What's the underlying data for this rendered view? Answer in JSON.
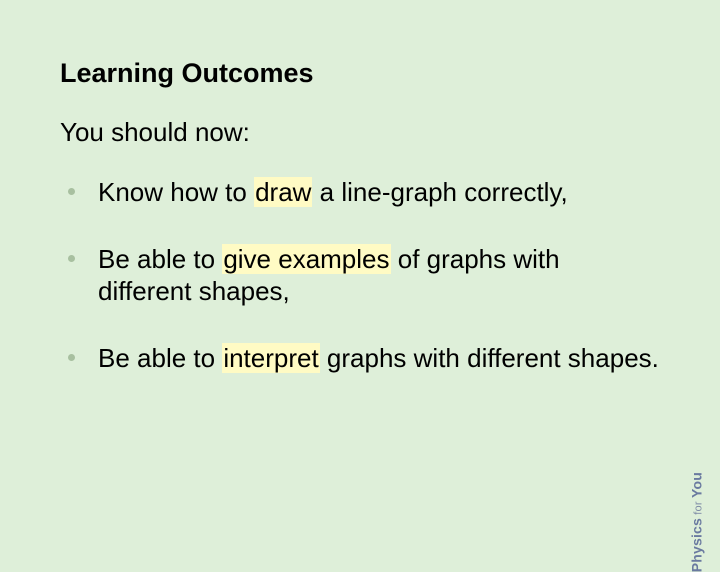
{
  "slide": {
    "background_color": "#deefd9",
    "highlight_color": "#fffbc4",
    "bullet_dot_color": "#a8c0a0",
    "title_fontsize": 27,
    "body_fontsize": 26,
    "heading": "Learning Outcomes",
    "intro": "You should now:",
    "bullets": [
      {
        "pre": "Know how to ",
        "hl": "draw",
        "post": " a line-graph correctly,"
      },
      {
        "pre": "Be able to ",
        "hl": "give examples",
        "post": " of graphs with different shapes,"
      },
      {
        "pre": "Be able to ",
        "hl": "interpret",
        "post": " graphs with different shapes."
      }
    ]
  },
  "watermark": {
    "physics": "Physics",
    "for": " for ",
    "you": "You"
  }
}
